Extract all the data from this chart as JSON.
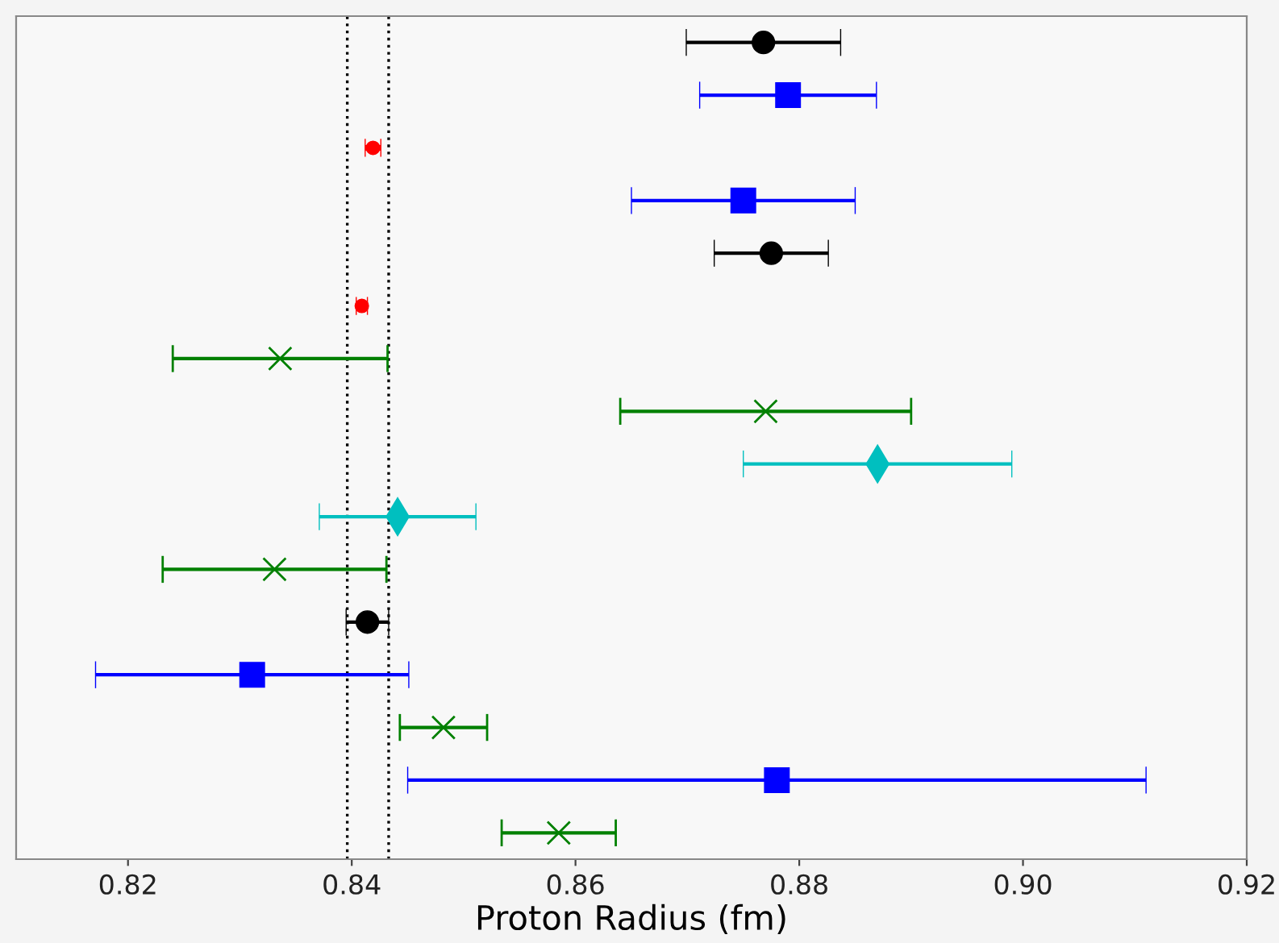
{
  "chart_data": {
    "type": "scatter",
    "orientation": "horizontal",
    "xlabel": "Proton Radius (fm)",
    "categories": [
      null,
      null,
      null,
      null,
      null,
      null,
      null,
      null,
      null,
      null,
      null,
      null,
      null,
      null,
      null,
      null
    ],
    "xlim": [
      0.81,
      0.92
    ],
    "xticks": [
      {
        "value": 0.82,
        "label": "0.82"
      },
      {
        "value": 0.84,
        "label": "0.84"
      },
      {
        "value": 0.86,
        "label": "0.86"
      },
      {
        "value": 0.88,
        "label": "0.88"
      },
      {
        "value": 0.9,
        "label": "0.90"
      },
      {
        "value": 0.92,
        "label": "0.92"
      }
    ],
    "tick_labels": "x",
    "grid": false,
    "legend": false,
    "ref_lines": [
      {
        "axis": "x",
        "value": 0.8396,
        "color": "#000000",
        "line_style": "dotted"
      },
      {
        "axis": "x",
        "value": 0.8433,
        "color": "#000000",
        "line_style": "dotted"
      }
    ],
    "series": [
      {
        "color": "#000000",
        "marker": "circle",
        "values": [
          0.8768,
          null,
          null,
          null,
          0.8775,
          null,
          null,
          null,
          null,
          null,
          null,
          0.8414,
          null,
          null,
          null,
          null
        ],
        "errors": [
          0.0069,
          null,
          null,
          null,
          0.0051,
          null,
          null,
          null,
          null,
          null,
          null,
          0.0019,
          null,
          null,
          null,
          null
        ]
      },
      {
        "color": "#0000ff",
        "marker": "square",
        "values": [
          null,
          0.879,
          null,
          0.875,
          null,
          null,
          null,
          null,
          null,
          null,
          null,
          null,
          0.8311,
          null,
          0.878,
          null
        ],
        "errors": [
          null,
          0.0079,
          null,
          0.01,
          null,
          null,
          null,
          null,
          null,
          null,
          null,
          null,
          0.014,
          null,
          0.033,
          null
        ]
      },
      {
        "color": "#ff0000",
        "marker": "circle",
        "values": [
          null,
          null,
          0.8419,
          null,
          null,
          0.8409,
          null,
          null,
          null,
          null,
          null,
          null,
          null,
          null,
          null,
          null
        ],
        "errors": [
          null,
          null,
          0.0007,
          null,
          null,
          0.0005,
          null,
          null,
          null,
          null,
          null,
          null,
          null,
          null,
          null,
          null
        ]
      },
      {
        "color": "#008000",
        "marker": "cross",
        "values": [
          null,
          null,
          null,
          null,
          null,
          null,
          0.8336,
          0.877,
          null,
          null,
          0.8331,
          null,
          null,
          0.8482,
          null,
          0.8585
        ],
        "errors": [
          null,
          null,
          null,
          null,
          null,
          null,
          0.0096,
          0.013,
          null,
          null,
          0.01,
          null,
          null,
          0.0039,
          null,
          0.0051
        ]
      },
      {
        "color": "#00bfbf",
        "marker": "diamond",
        "values": [
          null,
          null,
          null,
          null,
          null,
          null,
          null,
          null,
          0.887,
          0.8441,
          null,
          null,
          null,
          null,
          null,
          null
        ],
        "errors": [
          null,
          null,
          null,
          null,
          null,
          null,
          null,
          null,
          0.012,
          0.007,
          null,
          null,
          null,
          null,
          null,
          null
        ]
      }
    ]
  }
}
